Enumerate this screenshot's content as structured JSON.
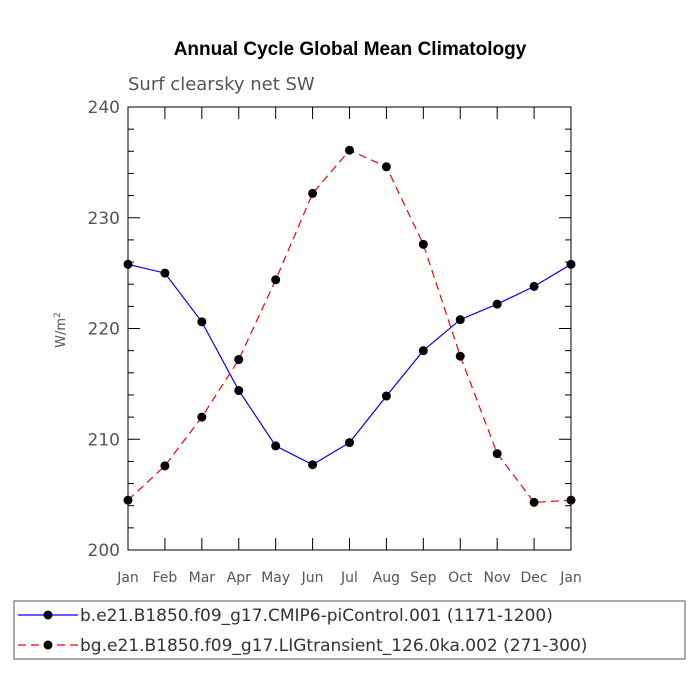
{
  "chart_data": {
    "type": "line",
    "title": "Annual Cycle Global Mean Climatology",
    "subtitle": "Surf clearsky net SW",
    "ylabel": "W/m",
    "ylabel_sup": "2",
    "xlabel": "",
    "ylim": [
      200,
      240
    ],
    "yticks": [
      200,
      210,
      220,
      230,
      240
    ],
    "categories": [
      "Jan",
      "Feb",
      "Mar",
      "Apr",
      "May",
      "Jun",
      "Jul",
      "Aug",
      "Sep",
      "Oct",
      "Nov",
      "Dec",
      "Jan"
    ],
    "series": [
      {
        "name": "b.e21.B1850.f09_g17.CMIP6-piControl.001 (1171-1200)",
        "color": "#0000ff",
        "style": "solid",
        "values": [
          225.8,
          225.0,
          220.6,
          214.4,
          209.4,
          207.7,
          209.7,
          213.9,
          218.0,
          220.8,
          222.2,
          223.8,
          225.8
        ]
      },
      {
        "name": "bg.e21.B1850.f09_g17.LIGtransient_126.0ka.002 (271-300)",
        "color": "#ff0000",
        "style": "dashed",
        "values": [
          204.5,
          207.6,
          212.0,
          217.2,
          224.4,
          232.2,
          236.1,
          234.6,
          227.6,
          217.5,
          208.7,
          204.3,
          204.5
        ]
      }
    ],
    "legend_position": "bottom"
  }
}
